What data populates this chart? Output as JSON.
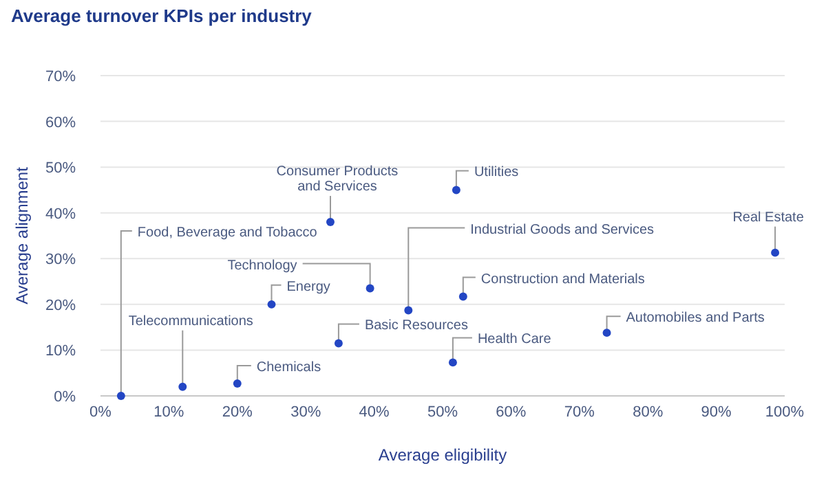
{
  "chart_data": {
    "type": "scatter",
    "title": "Average turnover KPIs per industry",
    "xlabel": "Average eligibility",
    "ylabel": "Average alignment",
    "x": [
      3,
      12,
      20,
      25,
      33.6,
      39.4,
      34.8,
      45,
      52,
      53,
      51.5,
      74,
      98.6
    ],
    "values": [
      0,
      2,
      2.7,
      20,
      38,
      23.5,
      11.5,
      18.7,
      45,
      21.7,
      7.3,
      13.8,
      31.3
    ],
    "color": "#2346c4",
    "marker": "circle",
    "grid": "y",
    "xlim": [
      0,
      100
    ],
    "ylim": [
      0,
      70
    ],
    "xticks": [
      {
        "value": 0,
        "label": "0%"
      },
      {
        "value": 10,
        "label": "10%"
      },
      {
        "value": 20,
        "label": "20%"
      },
      {
        "value": 30,
        "label": "30%"
      },
      {
        "value": 40,
        "label": "40%"
      },
      {
        "value": 50,
        "label": "50%"
      },
      {
        "value": 60,
        "label": "60%"
      },
      {
        "value": 70,
        "label": "70%"
      },
      {
        "value": 80,
        "label": "80%"
      },
      {
        "value": 90,
        "label": "90%"
      },
      {
        "value": 100,
        "label": "100%"
      }
    ],
    "yticks": [
      {
        "value": 0,
        "label": "0%"
      },
      {
        "value": 10,
        "label": "10%"
      },
      {
        "value": 20,
        "label": "20%"
      },
      {
        "value": 30,
        "label": "30%"
      },
      {
        "value": 40,
        "label": "40%"
      },
      {
        "value": 50,
        "label": "50%"
      },
      {
        "value": 60,
        "label": "60%"
      },
      {
        "value": 70,
        "label": "70%"
      }
    ],
    "annotations": [
      {
        "text": "Food, Beverage and Tobacco",
        "x": 3,
        "y": 0
      },
      {
        "text": "Telecommunications",
        "x": 12,
        "y": 2
      },
      {
        "text": "Chemicals",
        "x": 20,
        "y": 2.7
      },
      {
        "text": "Energy",
        "x": 25,
        "y": 20
      },
      {
        "text": "Consumer Products\nand Services",
        "x": 33.6,
        "y": 38
      },
      {
        "text": "Technology",
        "x": 39.4,
        "y": 23.5
      },
      {
        "text": "Basic Resources",
        "x": 34.8,
        "y": 11.5
      },
      {
        "text": "Industrial Goods and Services",
        "x": 45,
        "y": 18.7
      },
      {
        "text": "Utilities",
        "x": 52,
        "y": 45
      },
      {
        "text": "Construction and Materials",
        "x": 53,
        "y": 21.7
      },
      {
        "text": "Health Care",
        "x": 51.5,
        "y": 7.3
      },
      {
        "text": "Automobiles and Parts",
        "x": 74,
        "y": 13.8
      },
      {
        "text": "Real Estate",
        "x": 98.6,
        "y": 31.3
      }
    ]
  }
}
